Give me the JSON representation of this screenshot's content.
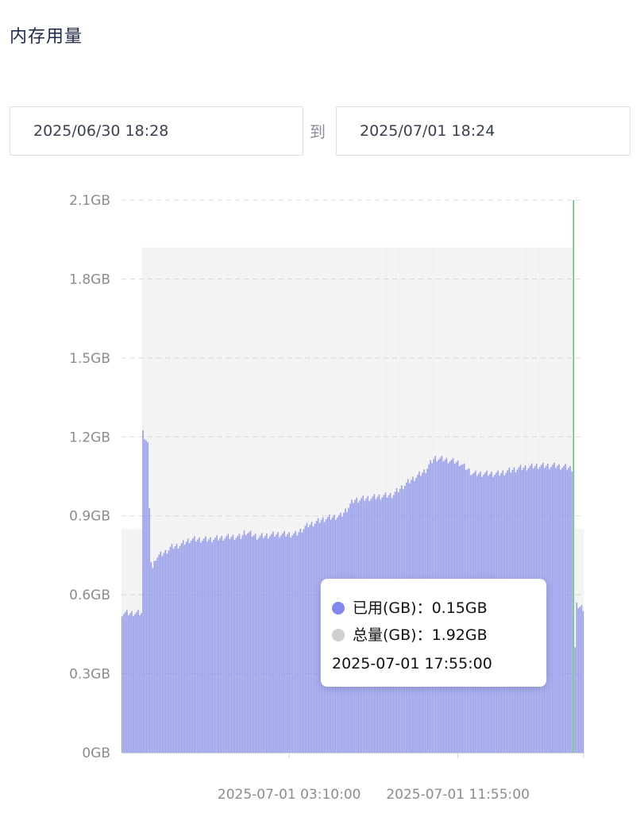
{
  "page_title": "内存用量",
  "date_range": {
    "start": "2025/06/30 18:28",
    "separator": "到",
    "end": "2025/07/01 18:24"
  },
  "colors": {
    "used": "#8389ec",
    "total": "#cfcfcf",
    "cursor": "#5cbf6a",
    "grid": "#d9d9d9",
    "axis_text": "#8c8c8c"
  },
  "tooltip": {
    "used_label": "已用(GB)：",
    "used_value": "0.15GB",
    "total_label": "总量(GB)：",
    "total_value": "1.92GB",
    "time": "2025-07-01 17:55:00"
  },
  "chart_data": {
    "type": "bar",
    "title": "",
    "y_axis": {
      "min": 0,
      "max": 2.1,
      "ticks": [
        0,
        0.3,
        0.6,
        0.9,
        1.2,
        1.5,
        1.8,
        2.1
      ],
      "tick_labels": [
        "0GB",
        "0.3GB",
        "0.6GB",
        "0.9GB",
        "1.2GB",
        "1.5GB",
        "1.8GB",
        "2.1GB"
      ],
      "unit": "GB"
    },
    "x_axis": {
      "start": "2025-06-30 18:28",
      "end": "2025-07-01 18:24",
      "tick_labels": [
        {
          "label": "2025-07-01 03:10:00",
          "time": "2025-07-01 03:10"
        },
        {
          "label": "2025-07-01 11:55:00",
          "time": "2025-07-01 11:55"
        }
      ]
    },
    "grid": true,
    "cursor_time": "2025-07-01 17:55",
    "series": [
      {
        "key": "total",
        "label": "总量(GB)",
        "segments": [
          {
            "start": "2025-06-30 18:28",
            "end": "2025-06-30 19:30",
            "value": 0.85
          },
          {
            "start": "2025-06-30 19:30",
            "end": "2025-07-01 17:55",
            "value": 1.92
          },
          {
            "start": "2025-07-01 17:55",
            "end": "2025-07-01 18:24",
            "value": 0.85
          }
        ]
      },
      {
        "key": "used",
        "label": "已用(GB)",
        "interval_minutes": 5,
        "points": [
          [
            "2025-06-30 18:28",
            0.53
          ],
          [
            "2025-06-30 19:30",
            0.53
          ],
          [
            "2025-06-30 19:32",
            1.22
          ],
          [
            "2025-06-30 19:50",
            1.17
          ],
          [
            "2025-06-30 19:55",
            0.75
          ],
          [
            "2025-06-30 20:05",
            0.69
          ],
          [
            "2025-06-30 20:10",
            0.74
          ],
          [
            "2025-06-30 20:40",
            0.76
          ],
          [
            "2025-06-30 21:00",
            0.78
          ],
          [
            "2025-06-30 21:30",
            0.79
          ],
          [
            "2025-06-30 22:00",
            0.81
          ],
          [
            "2025-06-30 23:00",
            0.81
          ],
          [
            "2025-07-01 00:00",
            0.82
          ],
          [
            "2025-07-01 00:40",
            0.82
          ],
          [
            "2025-07-01 00:50",
            0.84
          ],
          [
            "2025-07-01 01:30",
            0.82
          ],
          [
            "2025-07-01 02:30",
            0.83
          ],
          [
            "2025-07-01 03:30",
            0.83
          ],
          [
            "2025-07-01 04:00",
            0.86
          ],
          [
            "2025-07-01 05:00",
            0.89
          ],
          [
            "2025-07-01 05:50",
            0.9
          ],
          [
            "2025-07-01 06:30",
            0.96
          ],
          [
            "2025-07-01 07:30",
            0.97
          ],
          [
            "2025-07-01 08:30",
            0.98
          ],
          [
            "2025-07-01 09:20",
            1.03
          ],
          [
            "2025-07-01 10:10",
            1.07
          ],
          [
            "2025-07-01 10:40",
            1.12
          ],
          [
            "2025-07-01 11:30",
            1.11
          ],
          [
            "2025-07-01 12:00",
            1.1
          ],
          [
            "2025-07-01 12:40",
            1.06
          ],
          [
            "2025-07-01 13:20",
            1.06
          ],
          [
            "2025-07-01 14:00",
            1.06
          ],
          [
            "2025-07-01 15:00",
            1.08
          ],
          [
            "2025-07-01 16:00",
            1.09
          ],
          [
            "2025-07-01 17:00",
            1.09
          ],
          [
            "2025-07-01 17:50",
            1.08
          ],
          [
            "2025-07-01 17:55",
            0.15
          ],
          [
            "2025-07-01 18:00",
            0.56
          ],
          [
            "2025-07-01 18:24",
            0.55
          ]
        ]
      }
    ]
  }
}
